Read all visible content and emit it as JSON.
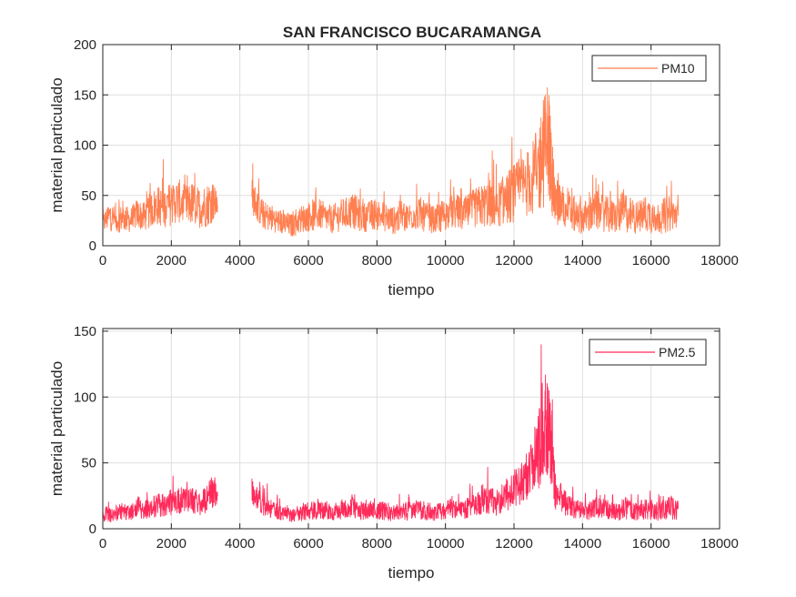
{
  "chart_data": [
    {
      "type": "line",
      "title": "SAN FRANCISCO BUCARAMANGA",
      "xlabel": "tiempo",
      "ylabel": "material particulado",
      "xlim": [
        0,
        18000
      ],
      "ylim": [
        0,
        200
      ],
      "xticks": [
        0,
        2000,
        4000,
        6000,
        8000,
        10000,
        12000,
        14000,
        16000,
        18000
      ],
      "yticks": [
        0,
        50,
        100,
        150,
        200
      ],
      "grid": true,
      "legend_position": "top-right",
      "series": [
        {
          "name": "PM10",
          "color": "#ff7f50",
          "x": [
            0,
            200,
            400,
            600,
            800,
            1000,
            1200,
            1400,
            1600,
            1800,
            2000,
            2200,
            2400,
            2600,
            2800,
            3000,
            3200,
            3350,
            4350,
            4500,
            4700,
            4900,
            5100,
            5300,
            5500,
            5700,
            5900,
            6100,
            6300,
            6500,
            6700,
            6900,
            7100,
            7300,
            7500,
            7700,
            7900,
            8100,
            8300,
            8500,
            8700,
            8900,
            9100,
            9300,
            9500,
            9700,
            9900,
            10100,
            10300,
            10500,
            10700,
            10900,
            11100,
            11300,
            11500,
            11700,
            11900,
            12100,
            12300,
            12500,
            12700,
            12850,
            13000,
            13100,
            13200,
            13400,
            13600,
            13800,
            14000,
            14200,
            14400,
            14600,
            14800,
            15000,
            15200,
            15400,
            15600,
            15800,
            16000,
            16200,
            16400,
            16600,
            16800
          ],
          "values": [
            22,
            30,
            25,
            28,
            25,
            32,
            28,
            36,
            40,
            38,
            42,
            45,
            40,
            42,
            38,
            40,
            45,
            40,
            50,
            40,
            30,
            28,
            25,
            22,
            20,
            25,
            28,
            30,
            32,
            28,
            26,
            30,
            32,
            35,
            30,
            28,
            32,
            30,
            28,
            25,
            30,
            28,
            32,
            30,
            28,
            25,
            30,
            32,
            35,
            30,
            35,
            38,
            40,
            42,
            40,
            45,
            50,
            55,
            60,
            65,
            75,
            90,
            110,
            70,
            45,
            40,
            35,
            30,
            28,
            30,
            35,
            32,
            30,
            28,
            35,
            30,
            28,
            32,
            30,
            28,
            30,
            32,
            30
          ],
          "spread": [
            10,
            15,
            12,
            14,
            12,
            15,
            14,
            18,
            20,
            20,
            22,
            22,
            20,
            22,
            20,
            22,
            22,
            10,
            18,
            16,
            14,
            14,
            12,
            12,
            12,
            14,
            14,
            16,
            16,
            14,
            14,
            16,
            16,
            18,
            16,
            14,
            16,
            16,
            14,
            14,
            16,
            14,
            16,
            16,
            14,
            14,
            16,
            16,
            18,
            16,
            18,
            20,
            22,
            24,
            22,
            25,
            28,
            30,
            32,
            35,
            45,
            55,
            60,
            40,
            25,
            22,
            20,
            18,
            16,
            18,
            20,
            18,
            18,
            16,
            22,
            18,
            16,
            18,
            18,
            16,
            18,
            18,
            12
          ]
        }
      ]
    },
    {
      "type": "line",
      "xlabel": "tiempo",
      "ylabel": "material particulado",
      "xlim": [
        0,
        18000
      ],
      "ylim": [
        0,
        152
      ],
      "xticks": [
        0,
        2000,
        4000,
        6000,
        8000,
        10000,
        12000,
        14000,
        16000,
        18000
      ],
      "yticks": [
        0,
        50,
        100,
        150
      ],
      "grid": true,
      "legend_position": "top-right",
      "series": [
        {
          "name": "PM2.5",
          "color": "#ff2a5a",
          "x": [
            0,
            200,
            400,
            600,
            800,
            1000,
            1200,
            1400,
            1600,
            1800,
            2000,
            2200,
            2400,
            2600,
            2800,
            3000,
            3200,
            3350,
            4350,
            4500,
            4700,
            4900,
            5100,
            5300,
            5500,
            5700,
            5900,
            6100,
            6300,
            6500,
            6700,
            6900,
            7100,
            7300,
            7500,
            7700,
            7900,
            8100,
            8300,
            8500,
            8700,
            8900,
            9100,
            9300,
            9500,
            9700,
            9900,
            10100,
            10300,
            10500,
            10700,
            10900,
            11100,
            11300,
            11500,
            11700,
            11900,
            12100,
            12300,
            12500,
            12700,
            12850,
            13000,
            13100,
            13200,
            13400,
            13600,
            13800,
            14000,
            14200,
            14400,
            14600,
            14800,
            15000,
            15200,
            15400,
            15600,
            15800,
            16000,
            16200,
            16400,
            16600,
            16800
          ],
          "values": [
            10,
            12,
            11,
            13,
            12,
            15,
            14,
            16,
            18,
            18,
            20,
            22,
            20,
            22,
            20,
            22,
            28,
            25,
            30,
            22,
            18,
            15,
            13,
            12,
            11,
            12,
            13,
            14,
            15,
            13,
            12,
            14,
            15,
            16,
            14,
            13,
            15,
            14,
            13,
            12,
            14,
            13,
            15,
            14,
            13,
            12,
            14,
            15,
            16,
            14,
            16,
            18,
            20,
            22,
            20,
            24,
            28,
            32,
            38,
            45,
            60,
            75,
            85,
            55,
            30,
            22,
            18,
            15,
            13,
            14,
            16,
            15,
            14,
            13,
            16,
            14,
            13,
            15,
            14,
            13,
            15,
            16,
            15
          ],
          "spread": [
            5,
            7,
            6,
            7,
            6,
            7,
            7,
            8,
            9,
            9,
            10,
            10,
            10,
            10,
            10,
            10,
            12,
            8,
            10,
            9,
            8,
            7,
            6,
            6,
            6,
            6,
            7,
            7,
            8,
            7,
            6,
            7,
            7,
            8,
            7,
            7,
            7,
            7,
            7,
            6,
            7,
            7,
            7,
            7,
            7,
            6,
            7,
            7,
            8,
            7,
            8,
            9,
            10,
            11,
            10,
            12,
            14,
            15,
            18,
            20,
            30,
            40,
            45,
            30,
            15,
            11,
            9,
            8,
            7,
            7,
            8,
            8,
            7,
            7,
            9,
            7,
            7,
            8,
            7,
            7,
            8,
            9,
            8
          ]
        }
      ]
    }
  ]
}
